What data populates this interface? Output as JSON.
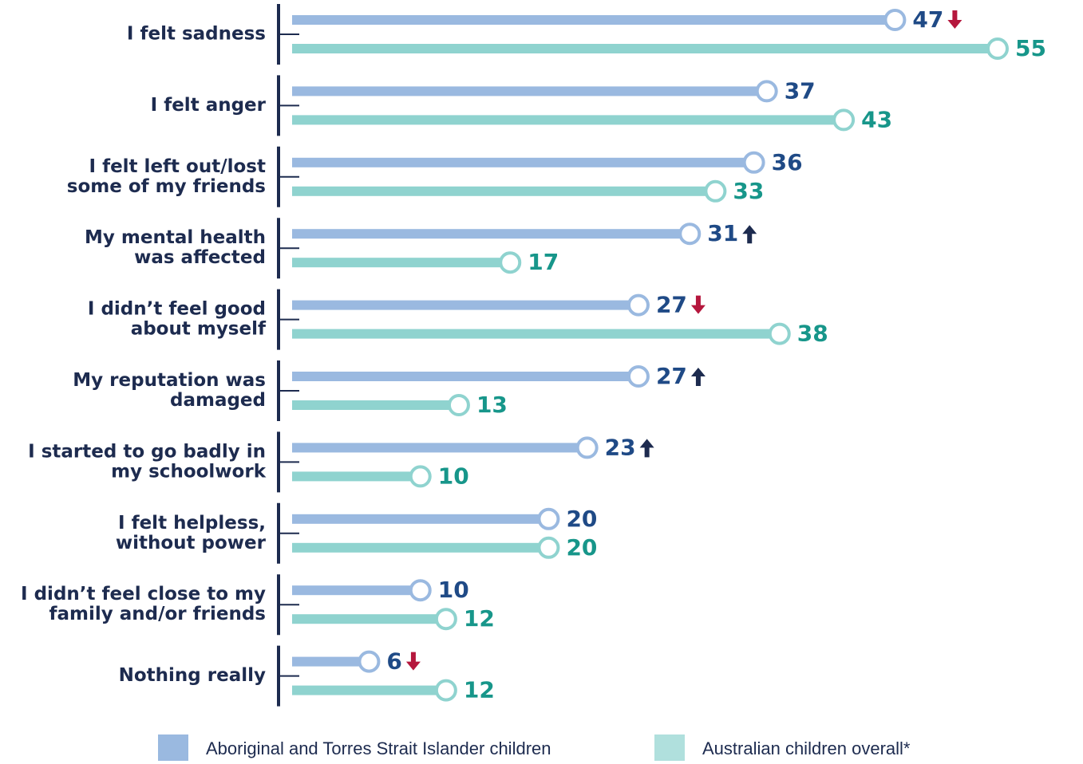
{
  "chart_data": {
    "type": "lollipop",
    "categories": [
      [
        "I felt sadness"
      ],
      [
        "I felt anger"
      ],
      [
        "I felt left out/lost",
        "some of my friends"
      ],
      [
        "My mental health",
        "was affected"
      ],
      [
        "I didn’t feel good",
        "about myself"
      ],
      [
        "My reputation was",
        "damaged"
      ],
      [
        "I started to go badly in",
        "my schoolwork"
      ],
      [
        "I felt helpless,",
        "without power"
      ],
      [
        "I didn’t feel close to my",
        "family and/or friends"
      ],
      [
        "Nothing really"
      ]
    ],
    "series": [
      {
        "name": "Aboriginal and Torres Strait Islander children",
        "color": "#9ab9e0",
        "label_color": "#1f4a86",
        "values": [
          47,
          37,
          36,
          31,
          27,
          27,
          23,
          20,
          10,
          6
        ],
        "significance": [
          "down",
          null,
          null,
          "up",
          "down",
          "up",
          "up",
          null,
          null,
          "down"
        ]
      },
      {
        "name": "Australian children overall*",
        "color": "#8fd3cf",
        "label_color": "#17968a",
        "values": [
          55,
          43,
          33,
          17,
          38,
          13,
          10,
          20,
          12,
          12
        ]
      }
    ]
  }
}
